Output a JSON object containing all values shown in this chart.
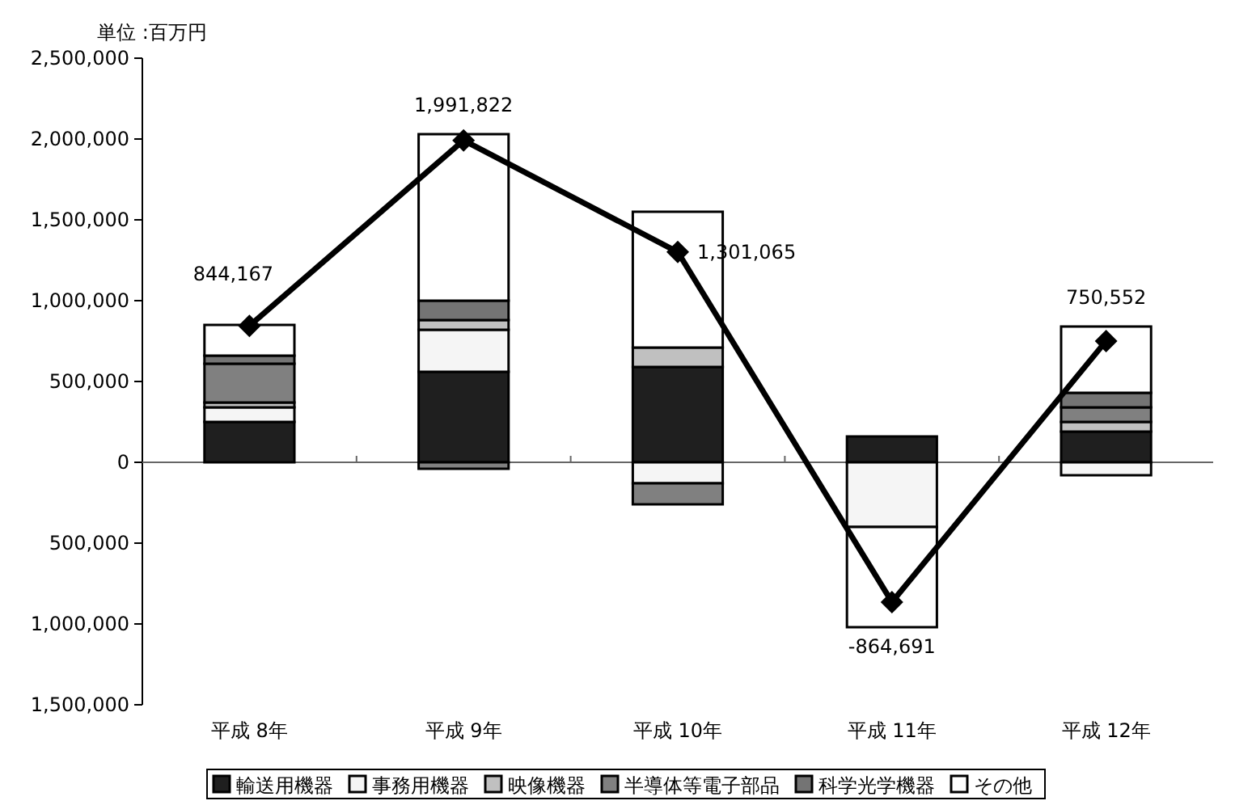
{
  "chart_data": {
    "type": "bar",
    "stacked": true,
    "ylabel": "単位 :百万円",
    "categories": [
      "平成 8年",
      "平成 9年",
      "平成 10年",
      "平成 11年",
      "平成 12年"
    ],
    "series": [
      {
        "name": "輸送用機器",
        "color": "#1f1f1f",
        "values": [
          250000,
          560000,
          590000,
          160000,
          190000
        ]
      },
      {
        "name": "事務用機器",
        "color": "#f5f5f5",
        "values": [
          90000,
          260000,
          -130000,
          -400000,
          -80000
        ]
      },
      {
        "name": "映像機器",
        "color": "#c0c0c0",
        "values": [
          30000,
          60000,
          120000,
          null,
          60000
        ]
      },
      {
        "name": "半導体等電子部品",
        "color": "#808080",
        "values": [
          240000,
          -40000,
          -130000,
          null,
          90000
        ]
      },
      {
        "name": "科学光学機器",
        "color": "#747474",
        "values": [
          50000,
          120000,
          null,
          null,
          90000
        ]
      },
      {
        "name": "その他",
        "color": "#ffffff",
        "values": [
          190000,
          1030000,
          840000,
          -620000,
          410000
        ]
      },
      {
        "type": "line",
        "color": "#000000",
        "marker": "diamond",
        "values": [
          844167,
          1991822,
          1301065,
          -864691,
          750552
        ],
        "value_labels": [
          "844,167",
          "1,991,822",
          "1,301,065",
          "-864,691",
          "750,552"
        ]
      }
    ],
    "ylim": [
      -1500000,
      2500000
    ],
    "yticks": [
      {
        "value": -1500000,
        "label": "1,500,000"
      },
      {
        "value": -1000000,
        "label": "1,000,000"
      },
      {
        "value": -500000,
        "label": "500,000"
      },
      {
        "value": 0,
        "label": "0"
      },
      {
        "value": 500000,
        "label": "500,000"
      },
      {
        "value": 1000000,
        "label": "1,000,000"
      },
      {
        "value": 1500000,
        "label": "1,500,000"
      },
      {
        "value": 2000000,
        "label": "2,000,000"
      },
      {
        "value": 2500000,
        "label": "2,500,000"
      }
    ],
    "legend": "bottom"
  }
}
